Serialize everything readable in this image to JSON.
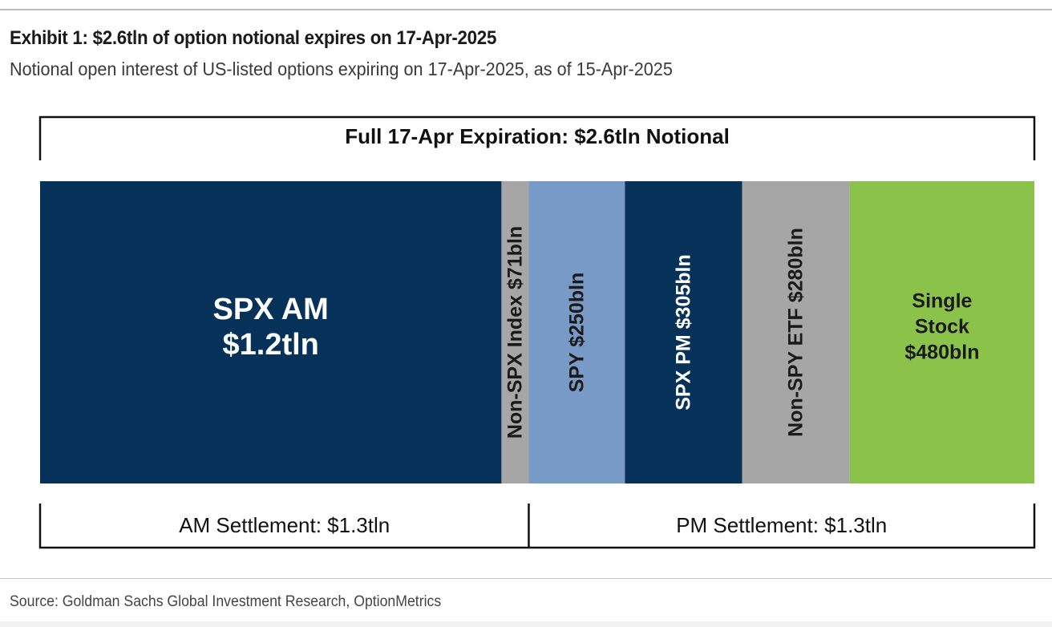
{
  "header": {
    "title": "Exhibit 1: $2.6tln of option notional expires on 17-Apr-2025",
    "subtitle": "Notional open interest of US-listed options expiring on 17-Apr-2025, as of 15-Apr-2025"
  },
  "footer": {
    "source": "Source: Goldman Sachs Global Investment Research, OptionMetrics"
  },
  "chart_data": {
    "type": "bar",
    "orientation": "horizontal-stacked",
    "units": "USD billions",
    "total_label": "Full 17-Apr Expiration: $2.6tln Notional",
    "total_value": 2600,
    "segments": [
      {
        "name": "SPX AM",
        "value": 1200,
        "label_lines": [
          "SPX AM",
          "$1.2tln"
        ],
        "vertical": false,
        "color": "#063259",
        "text_color": "#ffffff",
        "group": "AM"
      },
      {
        "name": "Non-SPX Index",
        "value": 71,
        "label_lines": [
          "Non-SPX Index $71bln"
        ],
        "vertical": true,
        "color": "#a6a6a6",
        "text_color": "#1a1a1a",
        "group": "AM"
      },
      {
        "name": "SPY",
        "value": 250,
        "label_lines": [
          "SPY $250bln"
        ],
        "vertical": true,
        "color": "#779ac7",
        "text_color": "#1a1a1a",
        "group": "PM"
      },
      {
        "name": "SPX PM",
        "value": 305,
        "label_lines": [
          "SPX PM $305bln"
        ],
        "vertical": true,
        "color": "#063259",
        "text_color": "#ffffff",
        "group": "PM"
      },
      {
        "name": "Non-SPY ETF",
        "value": 280,
        "label_lines": [
          "Non-SPY ETF $280bln"
        ],
        "vertical": true,
        "color": "#a6a6a6",
        "text_color": "#1a1a1a",
        "group": "PM"
      },
      {
        "name": "Single Stock",
        "value": 480,
        "label_lines": [
          "Single",
          "Stock",
          "$480bln"
        ],
        "vertical": false,
        "color": "#8bc34a",
        "text_color": "#1a1a1a",
        "group": "PM"
      }
    ],
    "settlement_groups": [
      {
        "name": "AM",
        "label": "AM Settlement: $1.3tln",
        "value": 1300
      },
      {
        "name": "PM",
        "label": "PM Settlement: $1.3tln",
        "value": 1300
      }
    ]
  }
}
